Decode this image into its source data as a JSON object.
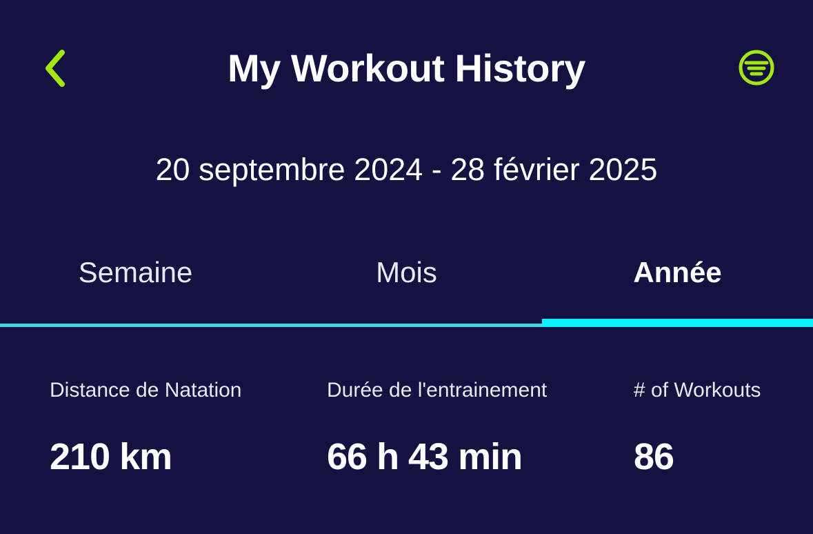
{
  "header": {
    "title": "My Workout History"
  },
  "date_range": "20 septembre 2024 - 28 février 2025",
  "tabs": [
    {
      "label": "Semaine",
      "active": false
    },
    {
      "label": "Mois",
      "active": false
    },
    {
      "label": "Année",
      "active": true
    }
  ],
  "stats": [
    {
      "label": "Distance de Natation",
      "value": "210 km"
    },
    {
      "label": "Durée de l'entrainement",
      "value": "66 h 43 min"
    },
    {
      "label": "# of Workouts",
      "value": "86"
    }
  ],
  "colors": {
    "background": "#131240",
    "accent_green": "#A4E613",
    "underline_teal": "#3FD6E4",
    "active_cyan": "#0EEFFF",
    "text_primary": "#FFFFFF",
    "text_secondary": "#E9E8F3"
  }
}
